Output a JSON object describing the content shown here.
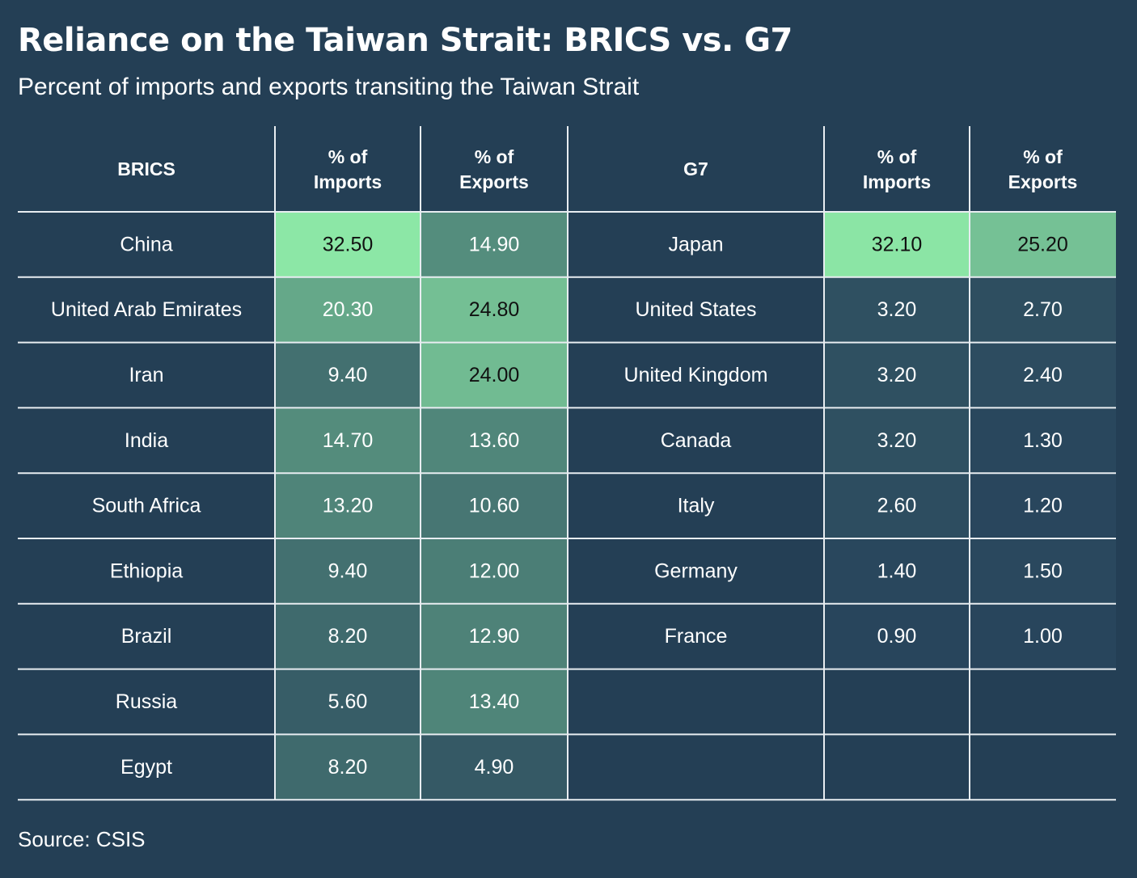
{
  "title": "Reliance on the Taiwan Strait: BRICS vs. G7",
  "subtitle": "Percent of imports and exports transiting the Taiwan Strait",
  "source": "Source: CSIS",
  "chart_data": {
    "type": "table",
    "headers": [
      "BRICS",
      "% of Imports",
      "% of Exports",
      "G7",
      "% of Imports",
      "% of Exports"
    ],
    "brics": [
      {
        "country": "China",
        "imports": 32.5,
        "exports": 14.9
      },
      {
        "country": "United Arab Emirates",
        "imports": 20.3,
        "exports": 24.8
      },
      {
        "country": "Iran",
        "imports": 9.4,
        "exports": 24.0
      },
      {
        "country": "India",
        "imports": 14.7,
        "exports": 13.6
      },
      {
        "country": "South Africa",
        "imports": 13.2,
        "exports": 10.6
      },
      {
        "country": "Ethiopia",
        "imports": 9.4,
        "exports": 12.0
      },
      {
        "country": "Brazil",
        "imports": 8.2,
        "exports": 12.9
      },
      {
        "country": "Russia",
        "imports": 5.6,
        "exports": 13.4
      },
      {
        "country": "Egypt",
        "imports": 8.2,
        "exports": 4.9
      }
    ],
    "g7": [
      {
        "country": "Japan",
        "imports": 32.1,
        "exports": 25.2
      },
      {
        "country": "United States",
        "imports": 3.2,
        "exports": 2.7
      },
      {
        "country": "United Kingdom",
        "imports": 3.2,
        "exports": 2.4
      },
      {
        "country": "Canada",
        "imports": 3.2,
        "exports": 1.3
      },
      {
        "country": "Italy",
        "imports": 2.6,
        "exports": 1.2
      },
      {
        "country": "Germany",
        "imports": 1.4,
        "exports": 1.5
      },
      {
        "country": "France",
        "imports": 0.9,
        "exports": 1.0
      }
    ],
    "colors": {
      "background": "#243f55",
      "scale_low": "#25405a",
      "scale_high": "#8ce7a6",
      "grid": "#e8edf1",
      "text_light": "#ffffff",
      "text_dark": "#111111"
    }
  }
}
